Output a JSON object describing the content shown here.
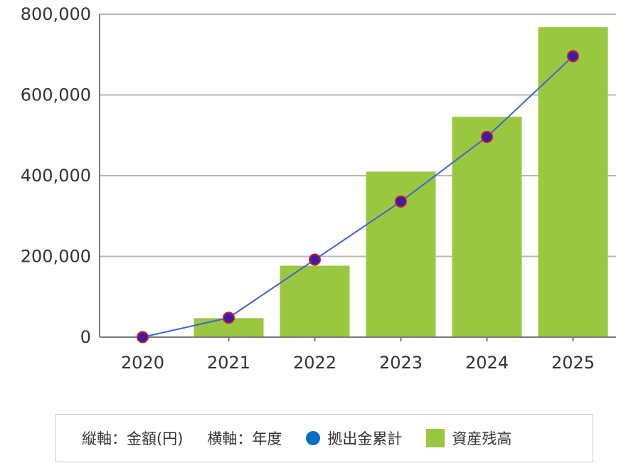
{
  "chart_data": {
    "type": "bar",
    "categories": [
      "2020",
      "2021",
      "2022",
      "2023",
      "2024",
      "2025"
    ],
    "series": [
      {
        "name": "資産残高",
        "type": "bar",
        "color": "#9ac740",
        "values": [
          0,
          47000,
          177000,
          410000,
          546000,
          768000
        ]
      },
      {
        "name": "拠出金累計",
        "type": "line",
        "color": "#4062d8",
        "marker_color": "#3a1bb0",
        "marker_stroke": "#d11b1b",
        "values": [
          0,
          48000,
          192000,
          336000,
          496000,
          696000
        ]
      }
    ],
    "ylim": [
      0,
      800000
    ],
    "y_ticks": [
      "0",
      "200,000",
      "400,000",
      "600,000",
      "800,000"
    ],
    "y_tick_values": [
      0,
      200000,
      400000,
      600000,
      800000
    ],
    "grid": true
  },
  "legend": {
    "vertical_axis": "縦軸：金額(円)",
    "horizontal_axis": "横軸：年度",
    "line_label": "拠出金累計",
    "line_color": "#0b6cc6",
    "bar_label": "資産残高",
    "bar_color": "#9ac740"
  }
}
